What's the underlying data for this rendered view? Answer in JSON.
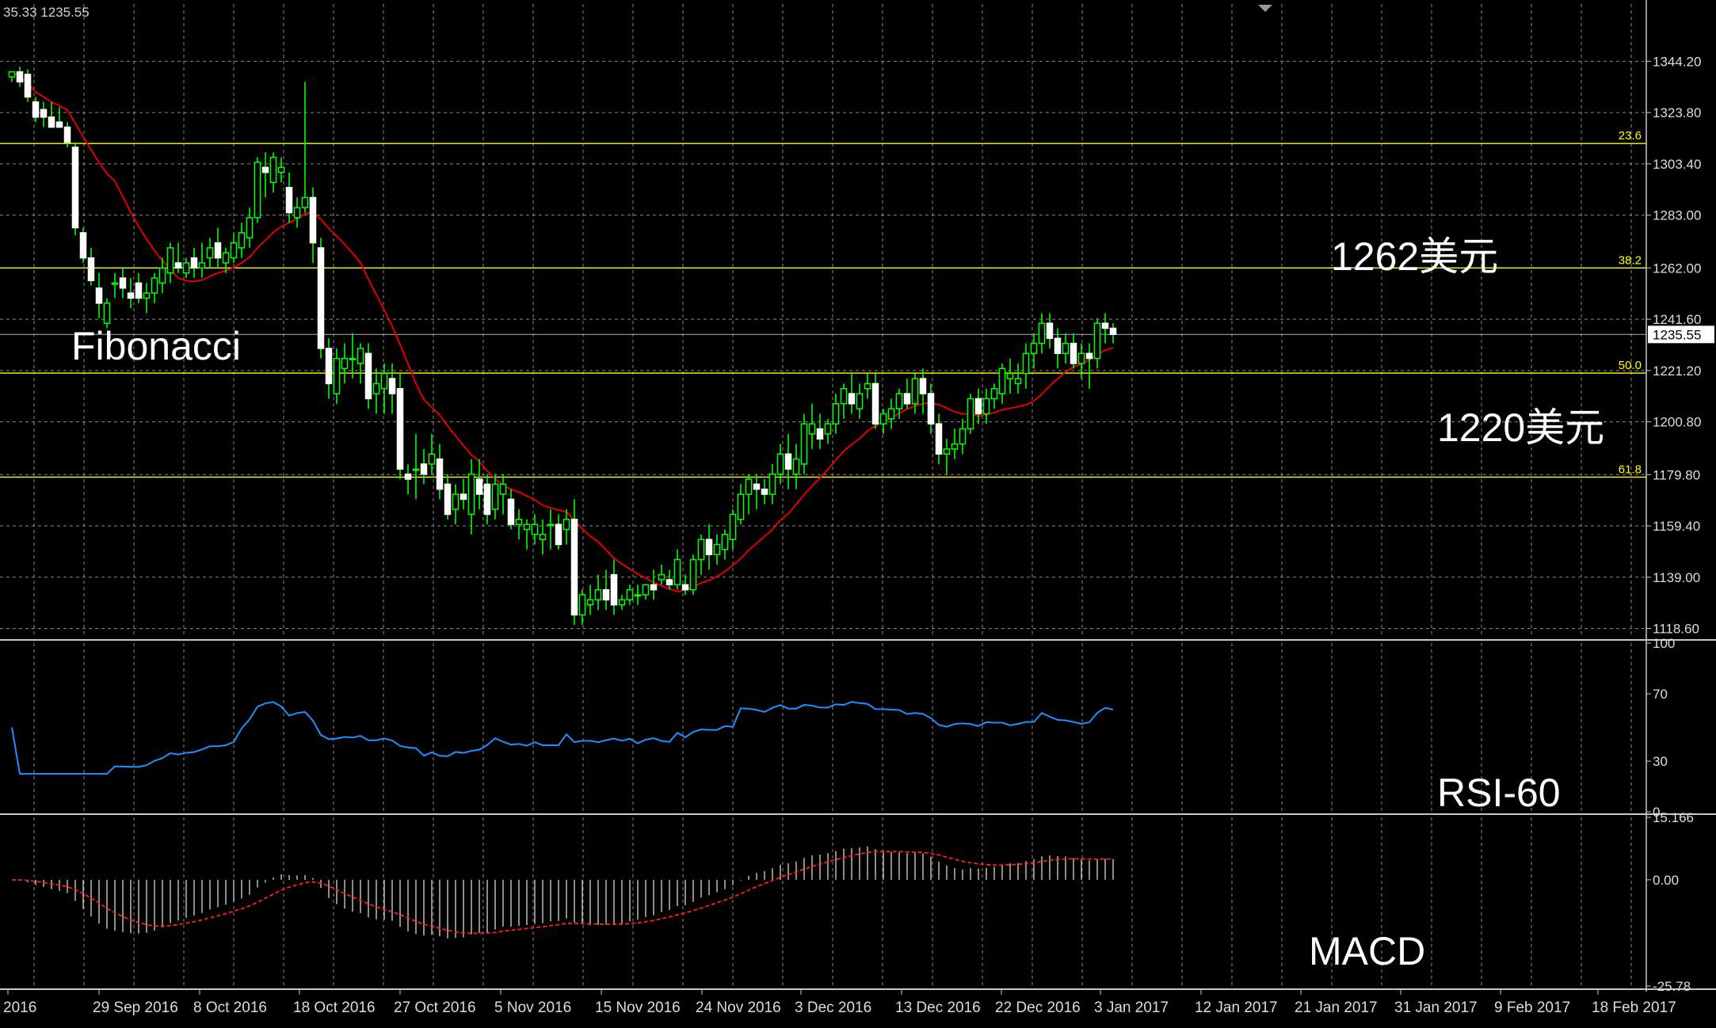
{
  "header": {
    "ohlc_text": "35.33 1235.55"
  },
  "annotations": {
    "fibonacci": "Fibonacci",
    "price_1262": "1262美元",
    "price_1220": "1220美元",
    "rsi": "RSI-60",
    "macd": "MACD"
  },
  "colors": {
    "background": "#000000",
    "grid": "#8a8a8a",
    "axis": "#c8c8c8",
    "bull_candle": "#00ff00",
    "bear_candle": "#ffffff",
    "moving_average": "#e00000",
    "fib_level": "#ffff00",
    "current_price_line": "#a0b4c8",
    "rsi_line": "#1e90ff",
    "macd_signal": "#ff2020",
    "macd_histogram": "#c8c8c8"
  },
  "chart_data": [
    {
      "type": "candlestick",
      "panel": "price",
      "x_tick_labels": [
        "2016",
        "29 Sep 2016",
        "8 Oct 2016",
        "18 Oct 2016",
        "27 Oct 2016",
        "5 Nov 2016",
        "15 Nov 2016",
        "24 Nov 2016",
        "3 Dec 2016",
        "13 Dec 2016",
        "22 Dec 2016",
        "3 Jan 2017",
        "12 Jan 2017",
        "21 Jan 2017",
        "31 Jan 2017",
        "9 Feb 2017",
        "18 Feb 2017"
      ],
      "y_ticks": [
        1344.2,
        1323.8,
        1303.4,
        1283.0,
        1262.0,
        1241.6,
        1221.2,
        1200.8,
        1179.8,
        1159.4,
        1139.0,
        1118.6
      ],
      "y_tick_labels": [
        "1344.20",
        "1323.80",
        "1303.40",
        "1283.00",
        "1262.00",
        "1241.60",
        "1221.20",
        "1200.80",
        "1179.80",
        "1159.40",
        "1139.00",
        "1118.60"
      ],
      "ylim": [
        1115.0,
        1367.0
      ],
      "current_price": 1235.55,
      "current_price_label": "1235.55",
      "fibonacci_levels": [
        {
          "label": "23.6",
          "value": 1311.5
        },
        {
          "label": "38.2",
          "value": 1262.0
        },
        {
          "label": "50.0",
          "value": 1220.2
        },
        {
          "label": "61.8",
          "value": 1178.8
        }
      ],
      "candles": [
        [
          1338,
          1340,
          1336,
          1340
        ],
        [
          1340,
          1342,
          1334,
          1336
        ],
        [
          1339,
          1341,
          1328,
          1330
        ],
        [
          1328,
          1330,
          1320,
          1322
        ],
        [
          1325,
          1328,
          1318,
          1322
        ],
        [
          1322,
          1328,
          1318,
          1318
        ],
        [
          1320,
          1326,
          1318,
          1318
        ],
        [
          1318,
          1320,
          1310,
          1312
        ],
        [
          1310,
          1312,
          1275,
          1278
        ],
        [
          1276,
          1278,
          1264,
          1266
        ],
        [
          1266,
          1270,
          1255,
          1257
        ],
        [
          1254,
          1260,
          1242,
          1248
        ],
        [
          1240,
          1250,
          1238,
          1248
        ],
        [
          1256,
          1260,
          1250,
          1256
        ],
        [
          1258,
          1262,
          1250,
          1254
        ],
        [
          1252,
          1258,
          1246,
          1250
        ],
        [
          1256,
          1260,
          1248,
          1250
        ],
        [
          1250,
          1256,
          1244,
          1252
        ],
        [
          1252,
          1260,
          1248,
          1258
        ],
        [
          1256,
          1266,
          1252,
          1262
        ],
        [
          1260,
          1272,
          1256,
          1270
        ],
        [
          1264,
          1272,
          1260,
          1262
        ],
        [
          1260,
          1266,
          1258,
          1264
        ],
        [
          1266,
          1270,
          1258,
          1262
        ],
        [
          1262,
          1272,
          1258,
          1264
        ],
        [
          1266,
          1274,
          1262,
          1270
        ],
        [
          1272,
          1278,
          1262,
          1266
        ],
        [
          1264,
          1270,
          1260,
          1268
        ],
        [
          1266,
          1276,
          1264,
          1272
        ],
        [
          1270,
          1280,
          1266,
          1276
        ],
        [
          1274,
          1286,
          1270,
          1282
        ],
        [
          1282,
          1306,
          1280,
          1304
        ],
        [
          1302,
          1308,
          1290,
          1300
        ],
        [
          1296,
          1308,
          1292,
          1306
        ],
        [
          1300,
          1306,
          1296,
          1302
        ],
        [
          1294,
          1300,
          1280,
          1284
        ],
        [
          1282,
          1290,
          1278,
          1286
        ],
        [
          1286,
          1336,
          1284,
          1290
        ],
        [
          1290,
          1294,
          1264,
          1272
        ],
        [
          1270,
          1274,
          1226,
          1230
        ],
        [
          1230,
          1234,
          1210,
          1216
        ],
        [
          1212,
          1230,
          1208,
          1226
        ],
        [
          1222,
          1232,
          1216,
          1226
        ],
        [
          1226,
          1236,
          1218,
          1226
        ],
        [
          1224,
          1232,
          1216,
          1230
        ],
        [
          1228,
          1232,
          1206,
          1210
        ],
        [
          1212,
          1222,
          1204,
          1216
        ],
        [
          1214,
          1224,
          1204,
          1220
        ],
        [
          1218,
          1224,
          1204,
          1212
        ],
        [
          1214,
          1220,
          1178,
          1182
        ],
        [
          1180,
          1184,
          1172,
          1178
        ],
        [
          1182,
          1196,
          1170,
          1182
        ],
        [
          1184,
          1190,
          1176,
          1180
        ],
        [
          1184,
          1196,
          1180,
          1188
        ],
        [
          1186,
          1192,
          1170,
          1174
        ],
        [
          1176,
          1180,
          1162,
          1164
        ],
        [
          1166,
          1176,
          1160,
          1172
        ],
        [
          1172,
          1178,
          1166,
          1170
        ],
        [
          1164,
          1186,
          1156,
          1180
        ],
        [
          1178,
          1186,
          1166,
          1172
        ],
        [
          1176,
          1180,
          1160,
          1164
        ],
        [
          1166,
          1180,
          1162,
          1176
        ],
        [
          1172,
          1180,
          1164,
          1176
        ],
        [
          1170,
          1174,
          1158,
          1160
        ],
        [
          1160,
          1166,
          1154,
          1162
        ],
        [
          1158,
          1162,
          1150,
          1160
        ],
        [
          1156,
          1164,
          1152,
          1160
        ],
        [
          1154,
          1162,
          1148,
          1156
        ],
        [
          1160,
          1166,
          1150,
          1160
        ],
        [
          1160,
          1164,
          1150,
          1152
        ],
        [
          1158,
          1166,
          1152,
          1162
        ],
        [
          1162,
          1170,
          1120,
          1124
        ],
        [
          1124,
          1134,
          1120,
          1132
        ],
        [
          1128,
          1136,
          1124,
          1130
        ],
        [
          1130,
          1140,
          1126,
          1134
        ],
        [
          1134,
          1142,
          1126,
          1130
        ],
        [
          1140,
          1146,
          1124,
          1128
        ],
        [
          1128,
          1132,
          1126,
          1130
        ],
        [
          1130,
          1136,
          1128,
          1134
        ],
        [
          1132,
          1136,
          1128,
          1132
        ],
        [
          1132,
          1136,
          1130,
          1136
        ],
        [
          1136,
          1142,
          1130,
          1134
        ],
        [
          1138,
          1144,
          1136,
          1140
        ],
        [
          1138,
          1142,
          1134,
          1136
        ],
        [
          1136,
          1150,
          1134,
          1146
        ],
        [
          1136,
          1140,
          1132,
          1134
        ],
        [
          1134,
          1148,
          1132,
          1146
        ],
        [
          1146,
          1156,
          1140,
          1154
        ],
        [
          1154,
          1160,
          1142,
          1148
        ],
        [
          1148,
          1156,
          1144,
          1152
        ],
        [
          1150,
          1158,
          1146,
          1156
        ],
        [
          1154,
          1166,
          1150,
          1164
        ],
        [
          1162,
          1176,
          1160,
          1172
        ],
        [
          1172,
          1180,
          1164,
          1178
        ],
        [
          1176,
          1180,
          1166,
          1174
        ],
        [
          1174,
          1178,
          1168,
          1172
        ],
        [
          1172,
          1184,
          1168,
          1180
        ],
        [
          1180,
          1192,
          1176,
          1188
        ],
        [
          1188,
          1196,
          1174,
          1182
        ],
        [
          1180,
          1192,
          1174,
          1186
        ],
        [
          1184,
          1204,
          1180,
          1200
        ],
        [
          1196,
          1208,
          1190,
          1200
        ],
        [
          1198,
          1204,
          1190,
          1194
        ],
        [
          1196,
          1202,
          1192,
          1200
        ],
        [
          1200,
          1212,
          1196,
          1208
        ],
        [
          1208,
          1216,
          1202,
          1214
        ],
        [
          1212,
          1220,
          1204,
          1208
        ],
        [
          1206,
          1216,
          1202,
          1212
        ],
        [
          1214,
          1220,
          1210,
          1216
        ],
        [
          1216,
          1220,
          1198,
          1200
        ],
        [
          1200,
          1206,
          1196,
          1204
        ],
        [
          1202,
          1210,
          1198,
          1206
        ],
        [
          1206,
          1214,
          1202,
          1212
        ],
        [
          1212,
          1218,
          1206,
          1208
        ],
        [
          1208,
          1220,
          1204,
          1218
        ],
        [
          1218,
          1222,
          1204,
          1212
        ],
        [
          1212,
          1216,
          1196,
          1200
        ],
        [
          1200,
          1204,
          1184,
          1188
        ],
        [
          1188,
          1194,
          1180,
          1190
        ],
        [
          1190,
          1198,
          1186,
          1192
        ],
        [
          1192,
          1202,
          1188,
          1198
        ],
        [
          1198,
          1212,
          1196,
          1210
        ],
        [
          1210,
          1214,
          1200,
          1204
        ],
        [
          1204,
          1214,
          1200,
          1210
        ],
        [
          1210,
          1216,
          1206,
          1214
        ],
        [
          1212,
          1224,
          1208,
          1222
        ],
        [
          1218,
          1226,
          1212,
          1220
        ],
        [
          1216,
          1224,
          1212,
          1218
        ],
        [
          1220,
          1232,
          1214,
          1228
        ],
        [
          1228,
          1236,
          1222,
          1232
        ],
        [
          1232,
          1244,
          1228,
          1240
        ],
        [
          1240,
          1244,
          1230,
          1234
        ],
        [
          1234,
          1238,
          1222,
          1228
        ],
        [
          1228,
          1236,
          1224,
          1232
        ],
        [
          1232,
          1236,
          1222,
          1224
        ],
        [
          1224,
          1232,
          1218,
          1228
        ],
        [
          1228,
          1232,
          1214,
          1226
        ],
        [
          1226,
          1242,
          1222,
          1240
        ],
        [
          1240,
          1244,
          1232,
          1238
        ],
        [
          1238,
          1240,
          1232,
          1235.55
        ]
      ]
    },
    {
      "type": "line",
      "panel": "rsi",
      "title": "RSI-60",
      "y_ticks": [
        100,
        70,
        30,
        0
      ],
      "y_tick_labels": [
        "100",
        "70",
        "30",
        "0"
      ],
      "ylim": [
        0,
        100
      ]
    },
    {
      "type": "bar",
      "panel": "macd",
      "title": "MACD",
      "y_ticks": [
        15.166,
        0.0,
        -25.78
      ],
      "y_tick_labels": [
        "15.166",
        "0.00",
        "-25.78"
      ],
      "ylim": [
        -25.78,
        15.166
      ]
    }
  ]
}
